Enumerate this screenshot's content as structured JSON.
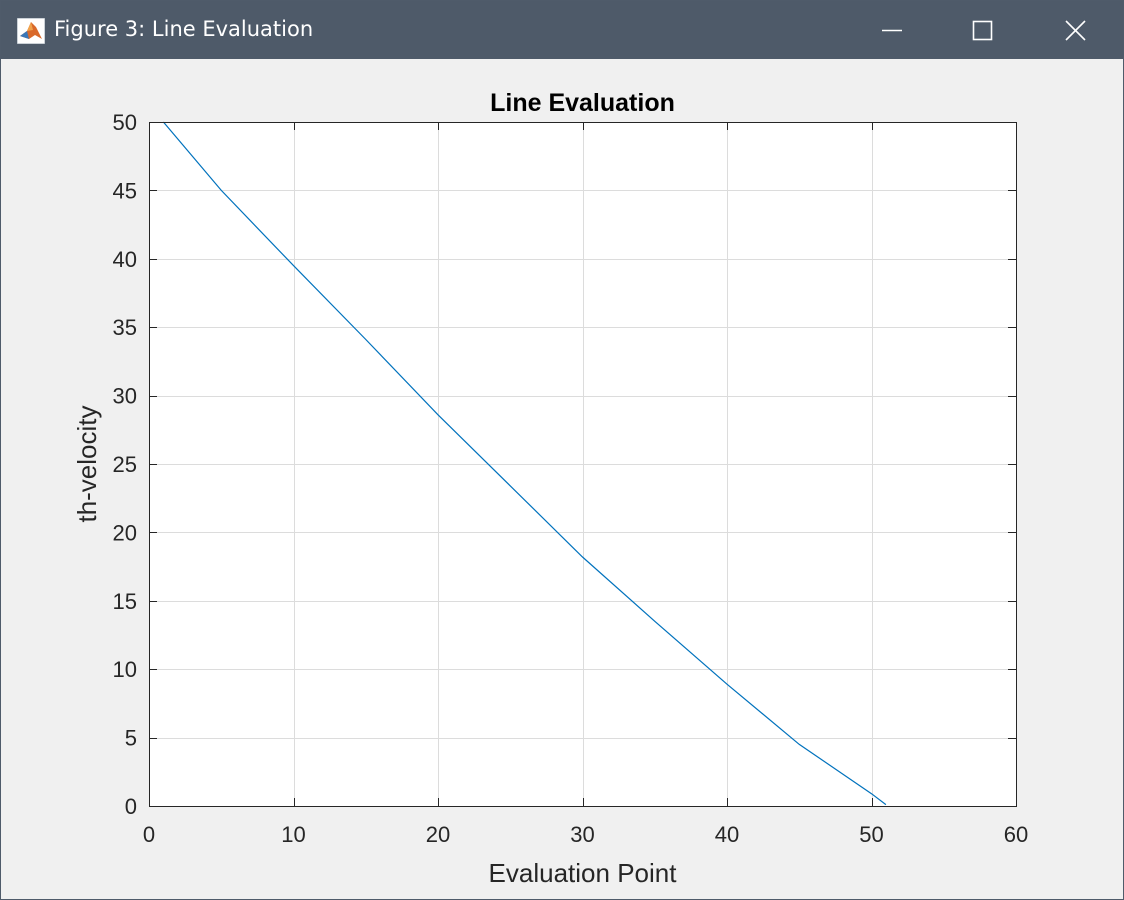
{
  "window": {
    "title": "Figure 3: Line Evaluation",
    "app_icon": "matlab-icon",
    "controls": {
      "minimize_icon": "minimize-icon",
      "maximize_icon": "maximize-icon",
      "close_icon": "close-icon"
    },
    "titlebar_color": "#4e5a69",
    "background_color": "#f0f0f0"
  },
  "chart_data": {
    "type": "line",
    "title": "Line Evaluation",
    "xlabel": "Evaluation Point",
    "ylabel": "th-velocity",
    "xlim": [
      0,
      60
    ],
    "ylim": [
      0,
      50
    ],
    "xticks": [
      0,
      10,
      20,
      30,
      40,
      50,
      60
    ],
    "yticks": [
      0,
      5,
      10,
      15,
      20,
      25,
      30,
      35,
      40,
      45,
      50
    ],
    "grid": true,
    "legend": null,
    "series": [
      {
        "color": "#0072bd",
        "x": [
          1,
          5,
          10,
          15,
          20,
          25,
          30,
          35,
          40,
          45,
          50,
          51
        ],
        "y": [
          50,
          45.0,
          39.5,
          34.1,
          28.6,
          23.4,
          18.2,
          13.5,
          8.9,
          4.5,
          0.9,
          0.1
        ]
      }
    ]
  }
}
